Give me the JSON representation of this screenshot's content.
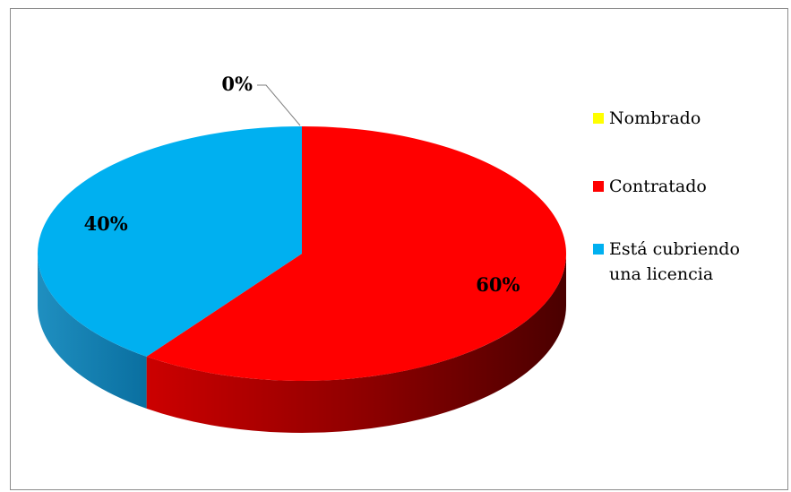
{
  "chart_data": {
    "type": "pie",
    "style": "3d",
    "title": "",
    "categories": [
      "Nombrado",
      "Contratado",
      "Está cubriendo una licencia"
    ],
    "values": [
      0,
      60,
      40
    ],
    "data_labels": [
      "0%",
      "60%",
      "40%"
    ],
    "colors": [
      "#ffff00",
      "#ff0000",
      "#00b0f0"
    ],
    "legend_position": "right"
  }
}
